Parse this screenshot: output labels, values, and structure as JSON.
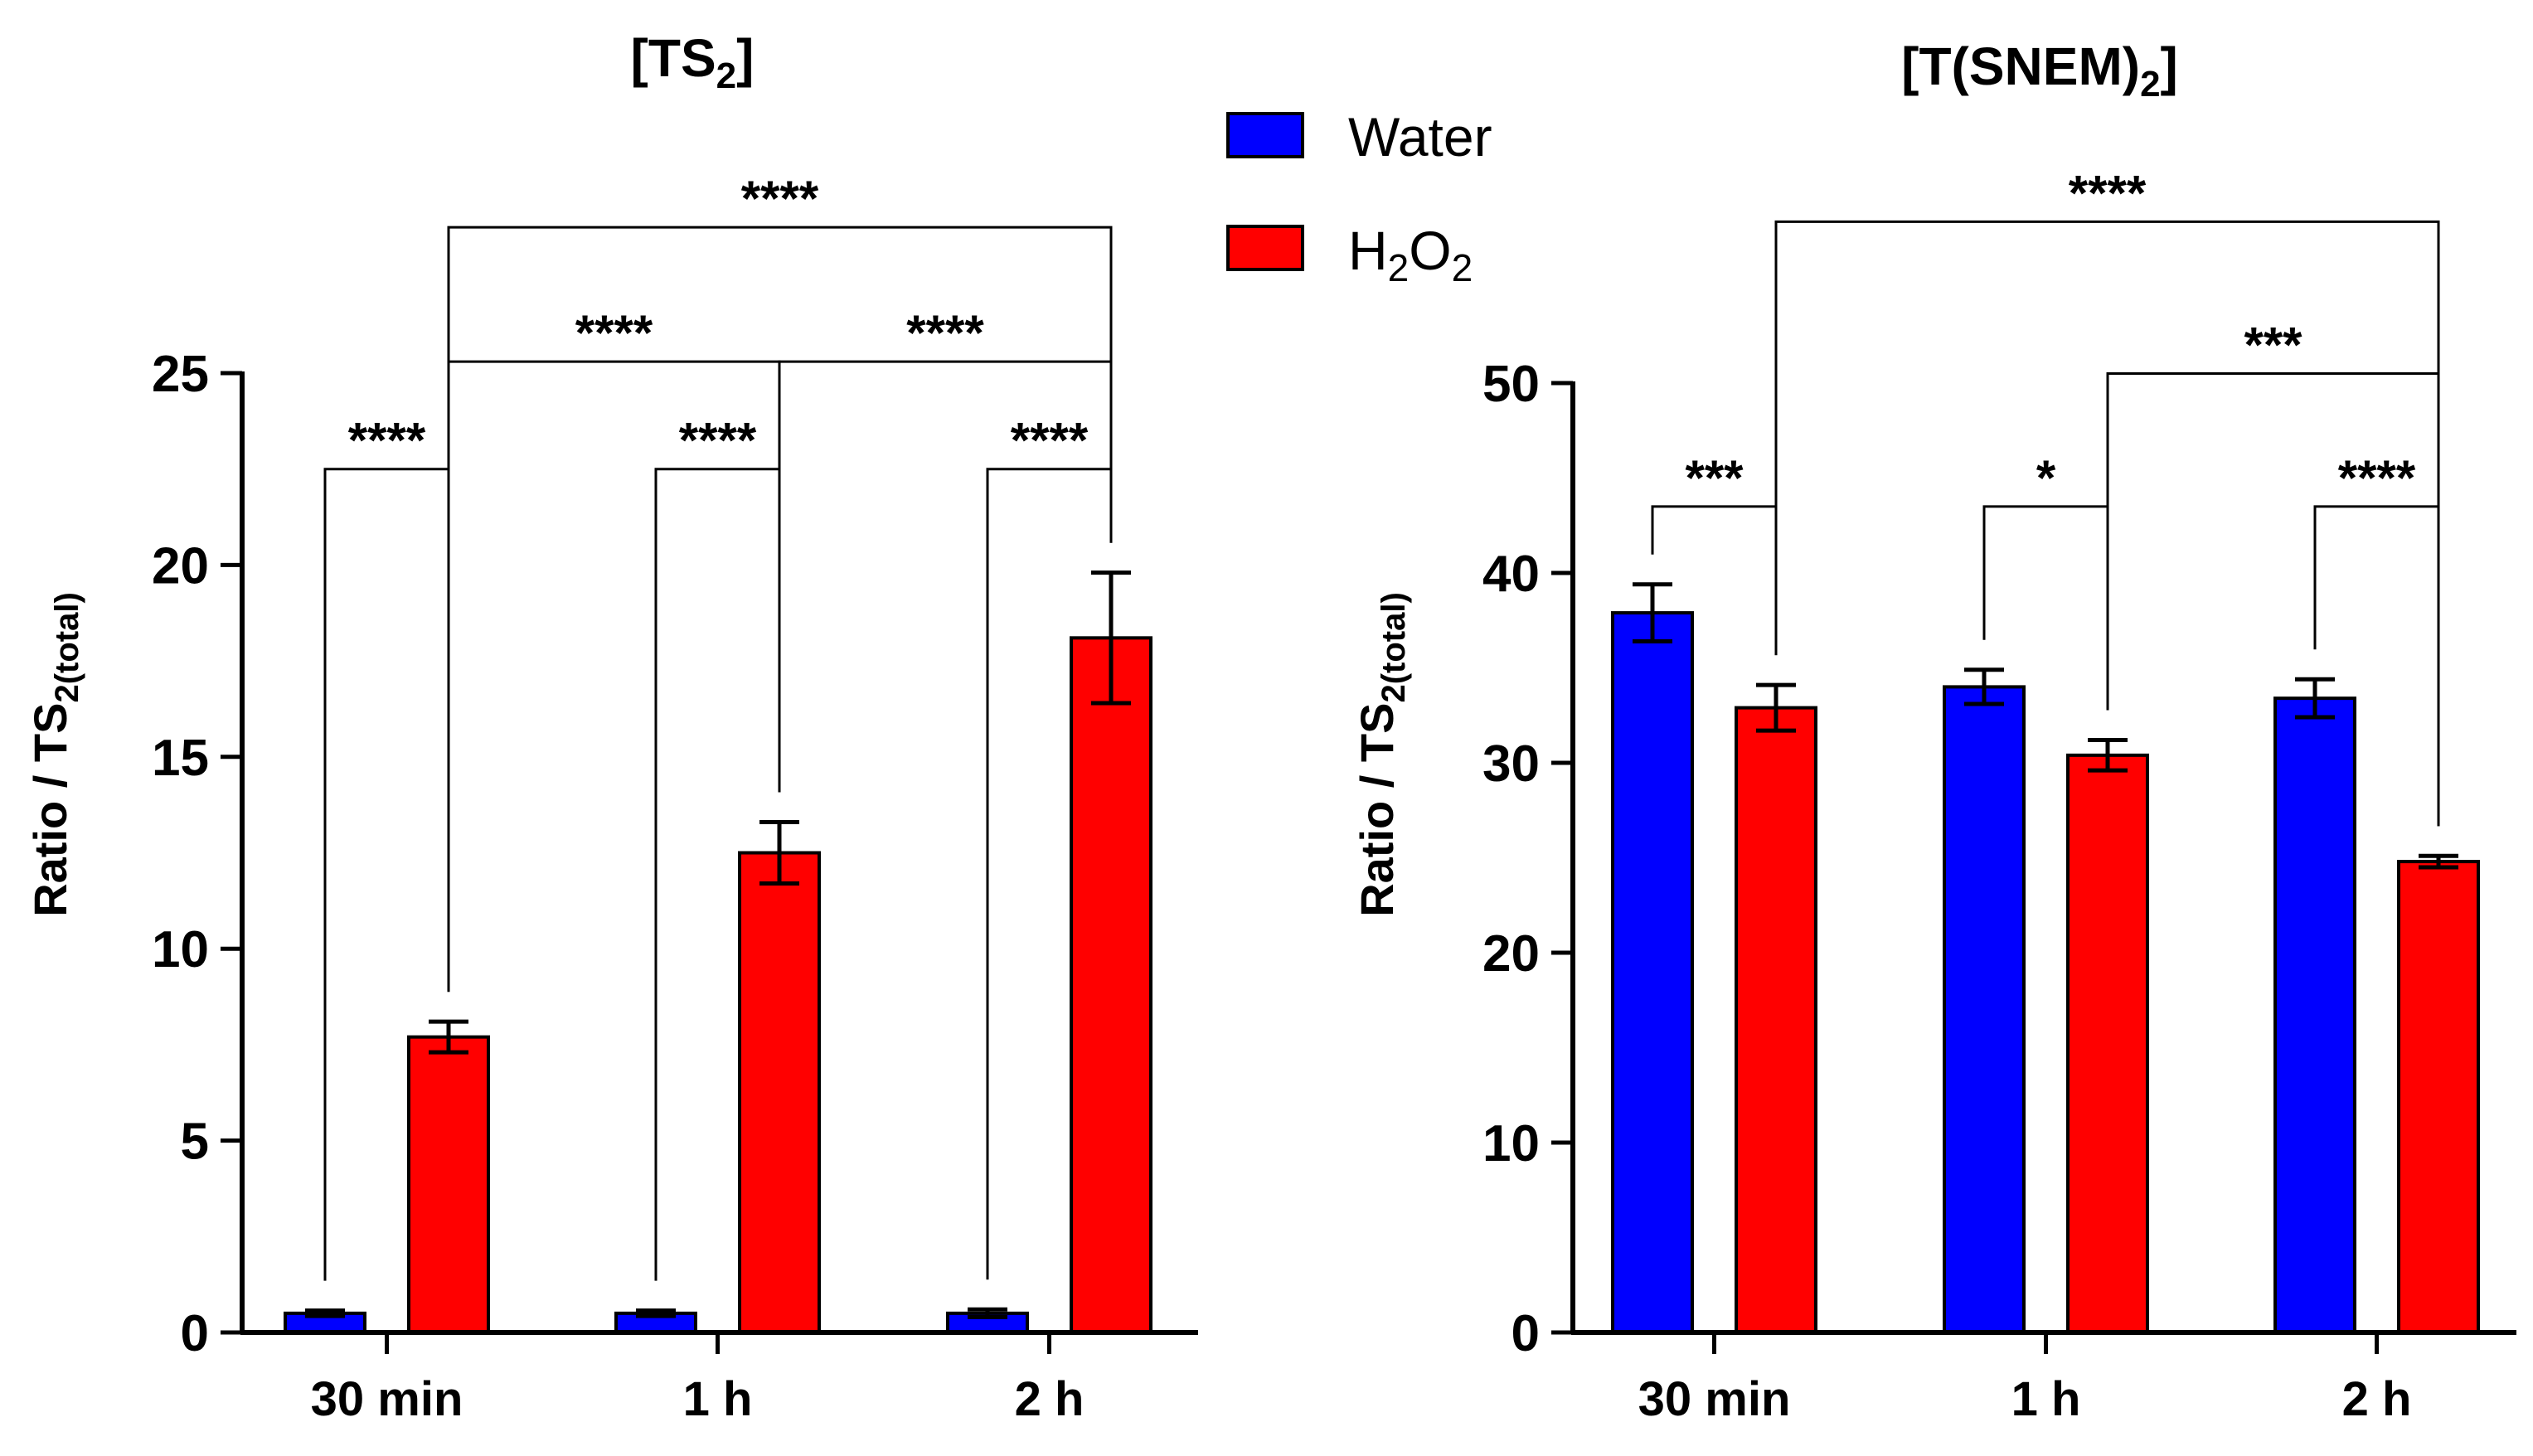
{
  "chart_data": [
    {
      "type": "bar",
      "title": "[TS2]",
      "title_parts": {
        "main": "[TS",
        "sub": "2",
        "tail": "]"
      },
      "ylabel": "Ratio /  TS2(total)",
      "ylabel_parts": {
        "main": "Ratio /  TS",
        "sub": "2(total)"
      },
      "xlabel": "",
      "categories": [
        "30 min",
        "1 h",
        "2 h"
      ],
      "ylim": [
        0,
        25
      ],
      "yticks": [
        0,
        5,
        10,
        15,
        20,
        25
      ],
      "ytick_labels": [
        "0",
        "5",
        "10",
        "15",
        "20",
        "25"
      ],
      "series": [
        {
          "name": "Water",
          "color": "#0000ff",
          "values": [
            0.5,
            0.5,
            0.5
          ],
          "errors": [
            0.07,
            0.07,
            0.1
          ]
        },
        {
          "name": "H2O2",
          "color": "#ff0000",
          "values": [
            7.7,
            12.5,
            18.1
          ],
          "errors": [
            0.4,
            0.8,
            1.7
          ]
        }
      ],
      "significance": [
        {
          "label": "****",
          "from": [
            0,
            0
          ],
          "to": [
            0,
            1
          ],
          "level": 22.5
        },
        {
          "label": "****",
          "from": [
            1,
            0
          ],
          "to": [
            1,
            1
          ],
          "level": 22.5
        },
        {
          "label": "****",
          "from": [
            2,
            0
          ],
          "to": [
            2,
            1
          ],
          "level": 22.5
        },
        {
          "label": "****",
          "from": [
            0,
            1
          ],
          "to": [
            1,
            1
          ],
          "level": 25.3
        },
        {
          "label": "****",
          "from": [
            1,
            1
          ],
          "to": [
            2,
            1
          ],
          "level": 25.3
        },
        {
          "label": "****",
          "from": [
            0,
            1
          ],
          "to": [
            2,
            1
          ],
          "level": 28.8
        }
      ]
    },
    {
      "type": "bar",
      "title": "[T(SNEM)2]",
      "title_parts": {
        "main": "[T(SNEM)",
        "sub": "2",
        "tail": "]"
      },
      "ylabel": "Ratio /  TS2(total)",
      "ylabel_parts": {
        "main": "Ratio /  TS",
        "sub": "2(total)"
      },
      "xlabel": "",
      "categories": [
        "30 min",
        "1 h",
        "2 h"
      ],
      "ylim": [
        0,
        50
      ],
      "yticks": [
        0,
        10,
        20,
        30,
        40,
        50
      ],
      "ytick_labels": [
        "0",
        "10",
        "20",
        "30",
        "40",
        "50"
      ],
      "series": [
        {
          "name": "Water",
          "color": "#0000ff",
          "values": [
            37.9,
            34.0,
            33.4
          ],
          "errors": [
            1.5,
            0.9,
            1.0
          ]
        },
        {
          "name": "H2O2",
          "color": "#ff0000",
          "values": [
            32.9,
            30.4,
            24.8
          ],
          "errors": [
            1.2,
            0.8,
            0.3
          ]
        }
      ],
      "significance": [
        {
          "label": "***",
          "from": [
            0,
            0
          ],
          "to": [
            0,
            1
          ],
          "level": 43.5
        },
        {
          "label": "*",
          "from": [
            1,
            0
          ],
          "to": [
            1,
            1
          ],
          "level": 43.5
        },
        {
          "label": "****",
          "from": [
            2,
            0
          ],
          "to": [
            2,
            1
          ],
          "level": 43.5
        },
        {
          "label": "***",
          "from": [
            1,
            1
          ],
          "to": [
            2,
            1
          ],
          "level": 50.5
        },
        {
          "label": "****",
          "from": [
            0,
            1
          ],
          "to": [
            2,
            1
          ],
          "level": 58.5
        }
      ]
    }
  ],
  "legend": {
    "position": "top-center",
    "items": [
      {
        "label": "Water",
        "color": "#0000ff"
      },
      {
        "label": "H2O2",
        "color": "#ff0000",
        "parts": {
          "a": "H",
          "sub1": "2",
          "b": "O",
          "sub2": "2"
        }
      }
    ]
  }
}
